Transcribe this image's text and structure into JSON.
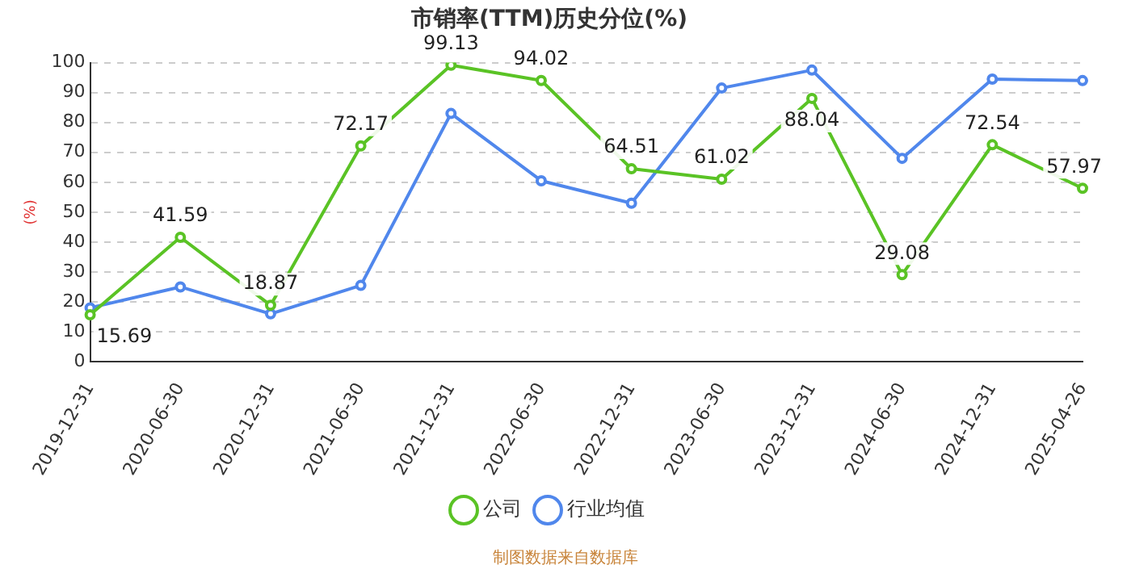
{
  "chart_data": {
    "type": "line",
    "title": "市销率(TTM)历史分位(%)",
    "ylabel": "(%)",
    "categories": [
      "2019-12-31",
      "2020-06-30",
      "2020-12-31",
      "2021-06-30",
      "2021-12-31",
      "2022-06-30",
      "2022-12-31",
      "2023-06-30",
      "2023-12-31",
      "2024-06-30",
      "2024-12-31",
      "2025-04-26"
    ],
    "series": [
      {
        "name": "公司",
        "color": "#5ac325",
        "values": [
          15.69,
          41.59,
          18.87,
          72.17,
          99.13,
          94.02,
          64.51,
          61.02,
          88.04,
          29.08,
          72.54,
          57.97
        ],
        "value_labels": [
          "15.69",
          "41.59",
          "18.87",
          "72.17",
          "99.13",
          "94.02",
          "64.51",
          "61.02",
          "88.04",
          "29.08",
          "72.54",
          "57.97"
        ]
      },
      {
        "name": "行业均值",
        "color": "#5087ec",
        "values": [
          18,
          25,
          16,
          25.5,
          83,
          60.5,
          53,
          91.5,
          97.5,
          68,
          94.5,
          94
        ]
      }
    ],
    "ylim": [
      0,
      100
    ],
    "yticks": [
      0,
      10,
      20,
      30,
      40,
      50,
      60,
      70,
      80,
      90,
      100
    ],
    "grid": "y",
    "legend": "bottom",
    "marker": "circle",
    "line_style": "solid",
    "annotations": [
      "制图数据来自数据库"
    ]
  }
}
